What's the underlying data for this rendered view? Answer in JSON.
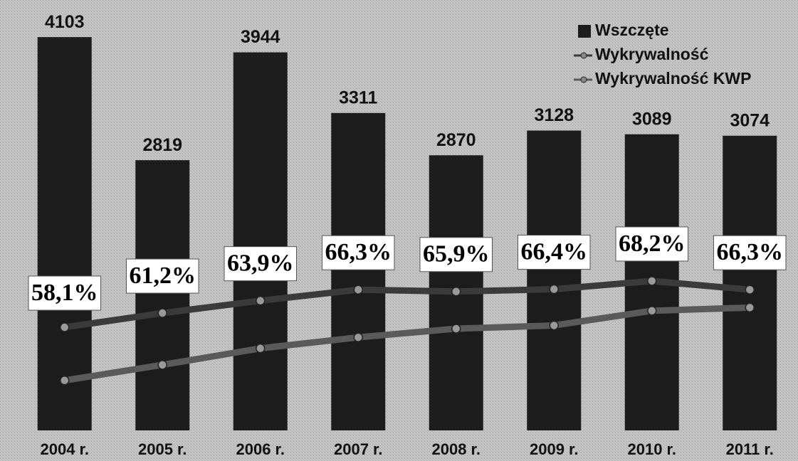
{
  "chart_data": {
    "type": "bar",
    "categories": [
      "2004 r.",
      "2005 r.",
      "2006 r.",
      "2007 r.",
      "2008 r.",
      "2009 r.",
      "2010 r.",
      "2011 r."
    ],
    "ylim": [
      0,
      4490
    ],
    "y2lim": [
      35.6,
      129.5
    ],
    "series": [
      {
        "name": "Wszczęte",
        "type": "bar",
        "color": "#1c1c1c",
        "values": [
          4103,
          2819,
          3944,
          3311,
          2870,
          3128,
          3089,
          3074
        ]
      },
      {
        "name": "Wykrywalność",
        "type": "line",
        "axis": "y2",
        "color": "#3a3a3a",
        "values": [
          58.1,
          61.2,
          63.9,
          66.3,
          65.9,
          66.4,
          68.2,
          66.3
        ],
        "value_labels": [
          "58,1%",
          "61,2%",
          "63,9%",
          "66,3%",
          "65,9%",
          "66,4%",
          "68,2%",
          "66,3%"
        ]
      },
      {
        "name": "Wykrywalność KWP",
        "type": "line",
        "axis": "y2",
        "color": "#5a5a5a",
        "values": [
          46.5,
          49.9,
          53.5,
          55.9,
          57.8,
          58.5,
          61.7,
          62.4
        ]
      }
    ],
    "legend": "top-right"
  }
}
